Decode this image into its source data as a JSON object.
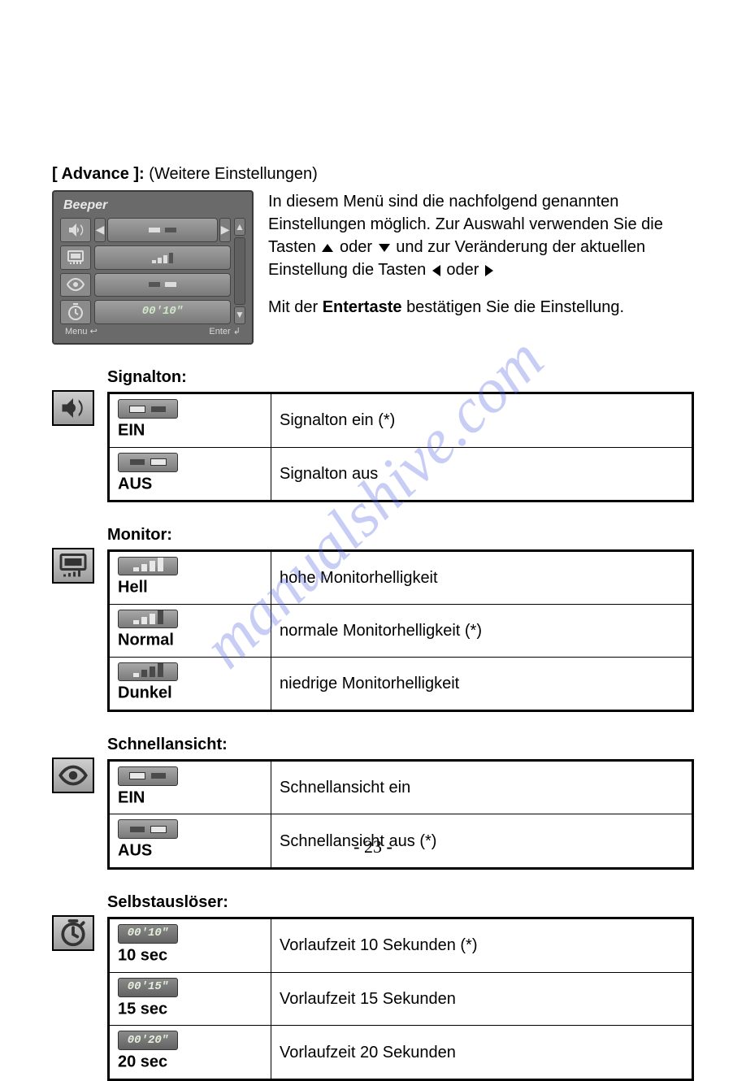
{
  "heading": {
    "label": "[ Advance ]:",
    "suffix": "(Weitere Einstellungen)"
  },
  "intro": {
    "p1a": "In diesem Menü sind die nachfolgend genannten Einstellungen möglich. Zur Auswahl verwenden Sie die Tasten ",
    "p1b": " oder ",
    "p1c": " und zur Veränderung der aktuellen Einstellung die Tasten ",
    "p1d": " oder ",
    "p2a": "Mit der ",
    "p2b": "Entertaste",
    "p2c": " bestätigen Sie die Einstellung."
  },
  "menu_screenshot": {
    "title": "Beeper",
    "timer": "00'10\"",
    "footer_left": "Menu ↩",
    "footer_right": "Enter ↲"
  },
  "watermark": "manualshive.com",
  "page_number": "23",
  "sections": [
    {
      "title": "Signalton:",
      "icon": "speaker",
      "rows": [
        {
          "ctrl": "toggle-left",
          "label": "EIN",
          "desc": "Signalton ein (*)"
        },
        {
          "ctrl": "toggle-right",
          "label": "AUS",
          "desc": "Signalton aus"
        }
      ]
    },
    {
      "title": "Monitor:",
      "icon": "monitor",
      "rows": [
        {
          "ctrl": "bright-4",
          "label": "Hell",
          "desc": "hohe Monitorhelligkeit"
        },
        {
          "ctrl": "bright-3",
          "label": "Normal",
          "desc": "normale Monitorhelligkeit (*)"
        },
        {
          "ctrl": "bright-1",
          "label": "Dunkel",
          "desc": "niedrige Monitorhelligkeit"
        }
      ]
    },
    {
      "title": "Schnellansicht:",
      "icon": "eye",
      "rows": [
        {
          "ctrl": "toggle-left",
          "label": "EIN",
          "desc": "Schnellansicht ein"
        },
        {
          "ctrl": "toggle-right",
          "label": "AUS",
          "desc": "Schnellansicht aus (*)"
        }
      ]
    },
    {
      "title": "Selbstauslöser:",
      "icon": "timer",
      "rows": [
        {
          "ctrl": "time",
          "time": "00'10\"",
          "label": "10 sec",
          "desc": "Vorlaufzeit 10 Sekunden (*)"
        },
        {
          "ctrl": "time",
          "time": "00'15\"",
          "label": "15 sec",
          "desc": "Vorlaufzeit 15 Sekunden"
        },
        {
          "ctrl": "time",
          "time": "00'20\"",
          "label": "20 sec",
          "desc": "Vorlaufzeit 20 Sekunden"
        }
      ]
    }
  ]
}
